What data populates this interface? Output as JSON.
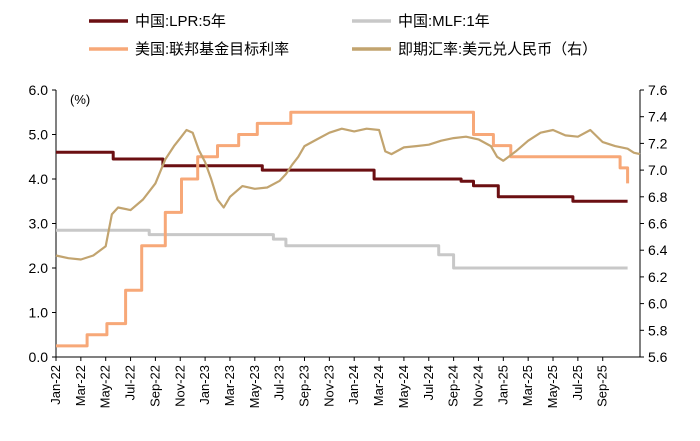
{
  "chart_data": {
    "type": "line",
    "x_categories": [
      "Jan-22",
      "Mar-22",
      "May-22",
      "Jul-22",
      "Sep-22",
      "Nov-22",
      "Jan-23",
      "Mar-23",
      "May-23",
      "Jul-23",
      "Sep-23",
      "Nov-23",
      "Jan-24",
      "Mar-24",
      "May-24",
      "Jul-24",
      "Sep-24",
      "Nov-24",
      "Jan-25",
      "Mar-25",
      "May-25",
      "Jul-25",
      "Sep-25"
    ],
    "y_left": {
      "ticks": [
        "0.0",
        "1.0",
        "2.0",
        "3.0",
        "4.0",
        "5.0",
        "6.0"
      ],
      "range": [
        0,
        6
      ],
      "unit_label": "(%)"
    },
    "y_right": {
      "ticks": [
        "5.6",
        "5.8",
        "6.0",
        "6.2",
        "6.4",
        "6.6",
        "6.8",
        "7.0",
        "7.2",
        "7.4",
        "7.6"
      ],
      "range": [
        5.6,
        7.6
      ]
    },
    "legend": [
      {
        "name": "中国:LPR:5年",
        "color": "#6b0f12"
      },
      {
        "name": "中国:MLF:1年",
        "color": "#c8c8c8"
      },
      {
        "name": "美国:联邦基金目标利率",
        "color": "#f7a878"
      },
      {
        "name": "即期汇率:美元兑人民币（右）",
        "color": "#c2a46f"
      }
    ],
    "series": [
      {
        "name": "中国:LPR:5年",
        "axis": "left",
        "color": "#6b0f12",
        "step": true,
        "points": [
          [
            0,
            4.6
          ],
          [
            4.6,
            4.45
          ],
          [
            8.6,
            4.3
          ],
          [
            16.6,
            4.2
          ],
          [
            25.6,
            4.0
          ],
          [
            32.6,
            3.95
          ],
          [
            33.6,
            3.85
          ],
          [
            35.6,
            3.6
          ],
          [
            41.6,
            3.5
          ],
          [
            46.0,
            3.5
          ]
        ]
      },
      {
        "name": "中国:MLF:1年",
        "axis": "left",
        "color": "#c8c8c8",
        "step": true,
        "points": [
          [
            0,
            2.85
          ],
          [
            7.5,
            2.75
          ],
          [
            17.5,
            2.65
          ],
          [
            18.5,
            2.5
          ],
          [
            30.8,
            2.3
          ],
          [
            32.0,
            2.0
          ],
          [
            46.0,
            2.0
          ]
        ]
      },
      {
        "name": "美国:联邦基金目标利率",
        "axis": "left",
        "color": "#f7a878",
        "step": true,
        "points": [
          [
            0,
            0.25
          ],
          [
            2.5,
            0.5
          ],
          [
            4.1,
            0.75
          ],
          [
            5.6,
            1.5
          ],
          [
            6.9,
            2.5
          ],
          [
            8.8,
            3.25
          ],
          [
            10.1,
            4.0
          ],
          [
            11.4,
            4.5
          ],
          [
            13.0,
            4.75
          ],
          [
            14.7,
            5.0
          ],
          [
            16.2,
            5.25
          ],
          [
            18.9,
            5.5
          ],
          [
            33.6,
            5.0
          ],
          [
            35.2,
            4.75
          ],
          [
            36.6,
            4.5
          ],
          [
            45.4,
            4.25
          ],
          [
            46.0,
            3.9
          ]
        ]
      },
      {
        "name": "即期汇率:美元兑人民币（右）",
        "axis": "right",
        "color": "#c2a46f",
        "step": false,
        "points": [
          [
            0,
            6.36
          ],
          [
            1,
            6.34
          ],
          [
            2,
            6.33
          ],
          [
            3,
            6.36
          ],
          [
            4,
            6.43
          ],
          [
            4.5,
            6.67
          ],
          [
            5,
            6.72
          ],
          [
            6,
            6.7
          ],
          [
            7,
            6.78
          ],
          [
            8,
            6.9
          ],
          [
            8.8,
            7.08
          ],
          [
            9.5,
            7.18
          ],
          [
            10,
            7.24
          ],
          [
            10.5,
            7.3
          ],
          [
            11,
            7.28
          ],
          [
            11.5,
            7.15
          ],
          [
            12,
            7.06
          ],
          [
            12.5,
            6.93
          ],
          [
            13,
            6.78
          ],
          [
            13.5,
            6.72
          ],
          [
            14,
            6.8
          ],
          [
            15,
            6.88
          ],
          [
            16,
            6.86
          ],
          [
            17,
            6.87
          ],
          [
            18,
            6.92
          ],
          [
            18.5,
            6.97
          ],
          [
            19,
            7.04
          ],
          [
            19.5,
            7.1
          ],
          [
            20,
            7.18
          ],
          [
            21,
            7.23
          ],
          [
            22,
            7.28
          ],
          [
            23,
            7.31
          ],
          [
            24,
            7.29
          ],
          [
            25,
            7.31
          ],
          [
            26,
            7.3
          ],
          [
            26.5,
            7.14
          ],
          [
            27,
            7.12
          ],
          [
            28,
            7.17
          ],
          [
            29,
            7.18
          ],
          [
            30,
            7.19
          ],
          [
            31,
            7.22
          ],
          [
            32,
            7.24
          ],
          [
            33,
            7.25
          ],
          [
            34,
            7.23
          ],
          [
            35,
            7.18
          ],
          [
            35.5,
            7.1
          ],
          [
            36,
            7.07
          ],
          [
            37,
            7.14
          ],
          [
            38,
            7.22
          ],
          [
            39,
            7.28
          ],
          [
            40,
            7.3
          ],
          [
            41,
            7.26
          ],
          [
            42,
            7.25
          ],
          [
            43,
            7.3
          ],
          [
            44,
            7.21
          ],
          [
            45,
            7.18
          ],
          [
            46,
            7.16
          ],
          [
            46.5,
            7.13
          ],
          [
            47,
            7.12
          ]
        ]
      }
    ]
  }
}
